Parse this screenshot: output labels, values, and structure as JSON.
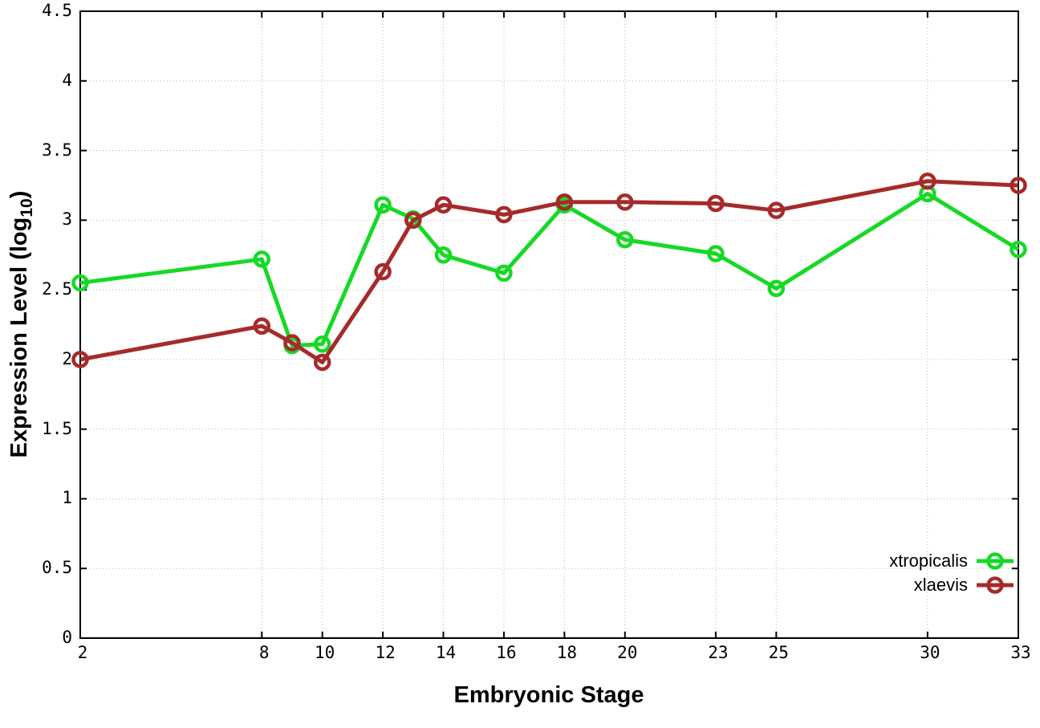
{
  "labels": {
    "xlabel": "Embryonic Stage",
    "ylabel_main": "Expression Level (log",
    "ylabel_sub": "10",
    "ylabel_close": ")"
  },
  "chart_data": {
    "type": "line",
    "title": "",
    "xlabel": "Embryonic Stage",
    "ylabel": "Expression Level (log10)",
    "xlim": [
      2,
      33
    ],
    "ylim": [
      0,
      4.5
    ],
    "grid": true,
    "grid_style": "dotted",
    "legend_position": "bottom-right-inside",
    "background_color": "#ffffff",
    "x": [
      2,
      8,
      9,
      10,
      12,
      13,
      14,
      16,
      18,
      20,
      23,
      25,
      30,
      33
    ],
    "xticks": {
      "values": [
        2,
        8,
        10,
        12,
        14,
        16,
        18,
        20,
        23,
        25,
        30,
        33
      ],
      "labels": [
        "2",
        "8",
        "10",
        "12",
        "14",
        "16",
        "18",
        "20",
        "23",
        "25",
        "30",
        "33"
      ]
    },
    "yticks": {
      "values": [
        0,
        0.5,
        1,
        1.5,
        2,
        2.5,
        3,
        3.5,
        4,
        4.5
      ],
      "labels": [
        "0",
        "0.5",
        "1",
        "1.5",
        "2",
        "2.5",
        "3",
        "3.5",
        "4",
        "4.5"
      ]
    },
    "series": [
      {
        "name": "xtropicalis",
        "color": "#16d926",
        "marker": "open-circle",
        "values": [
          2.55,
          2.72,
          2.1,
          2.11,
          3.11,
          3.01,
          2.75,
          2.62,
          3.11,
          2.86,
          2.76,
          2.51,
          3.19,
          2.79
        ]
      },
      {
        "name": "xlaevis",
        "color": "#a62a2a",
        "marker": "open-circle",
        "values": [
          2.0,
          2.24,
          2.12,
          1.98,
          2.63,
          3.0,
          3.11,
          3.04,
          3.13,
          3.13,
          3.12,
          3.07,
          3.28,
          3.25
        ]
      }
    ]
  }
}
